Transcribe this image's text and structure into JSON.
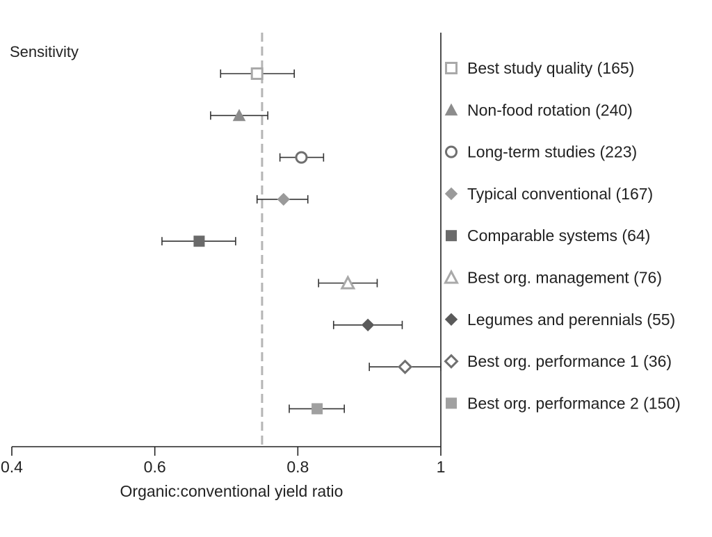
{
  "chart_data": {
    "type": "scatter",
    "title": "Sensitivity",
    "xlabel": "Organic:conventional yield ratio",
    "xlim": [
      0.4,
      1.0
    ],
    "xticks": [
      {
        "value": 0.4,
        "label": "0.4"
      },
      {
        "value": 0.6,
        "label": "0.6"
      },
      {
        "value": 0.8,
        "label": "0.8"
      },
      {
        "value": 1.0,
        "label": "1"
      }
    ],
    "reference_line": {
      "value": 0.75,
      "style": "dashed",
      "color": "#b5b5b5"
    },
    "grid": false,
    "legend_position": "right",
    "series": [
      {
        "name": "Best study quality (165)",
        "marker": "square",
        "filled": false,
        "color": "#a9a9a9",
        "value": 0.743,
        "ci": [
          0.692,
          0.795
        ]
      },
      {
        "name": "Non-food rotation (240)",
        "marker": "triangle",
        "filled": true,
        "color": "#8c8c8c",
        "value": 0.718,
        "ci": [
          0.678,
          0.758
        ]
      },
      {
        "name": "Long-term studies (223)",
        "marker": "circle",
        "filled": false,
        "color": "#6f6f6f",
        "value": 0.805,
        "ci": [
          0.775,
          0.836
        ]
      },
      {
        "name": "Typical conventional (167)",
        "marker": "diamond",
        "filled": true,
        "color": "#9a9a9a",
        "value": 0.78,
        "ci": [
          0.743,
          0.814
        ]
      },
      {
        "name": "Comparable systems (64)",
        "marker": "square",
        "filled": true,
        "color": "#6a6a6a",
        "value": 0.662,
        "ci": [
          0.61,
          0.713
        ]
      },
      {
        "name": "Best org. management (76)",
        "marker": "triangle",
        "filled": false,
        "color": "#a9a9a9",
        "value": 0.87,
        "ci": [
          0.829,
          0.911
        ]
      },
      {
        "name": "Legumes and perennials (55)",
        "marker": "diamond",
        "filled": true,
        "color": "#5a5a5a",
        "value": 0.898,
        "ci": [
          0.85,
          0.946
        ]
      },
      {
        "name": "Best org. performance 1 (36)",
        "marker": "diamond",
        "filled": false,
        "color": "#6f6f6f",
        "value": 0.95,
        "ci": [
          0.9,
          1.0
        ]
      },
      {
        "name": "Best org. performance 2 (150)",
        "marker": "square",
        "filled": true,
        "color": "#a0a0a0",
        "value": 0.827,
        "ci": [
          0.788,
          0.865
        ]
      }
    ]
  }
}
